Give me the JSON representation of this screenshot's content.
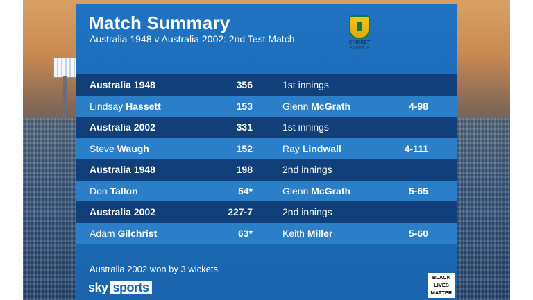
{
  "header": {
    "title": "Match Summary",
    "subtitle": "Australia 1948 v Australia 2002:  2nd Test Match",
    "logo_text": "CRICKET",
    "logo_subtext": "AUSTRALIA"
  },
  "rows": [
    {
      "team": "Australia 1948",
      "score": "356",
      "desc": "1st innings",
      "figures": ""
    },
    {
      "team_first": "Lindsay",
      "team_last": "Hassett",
      "score": "153",
      "desc_first": "Glenn",
      "desc_last": "McGrath",
      "figures": "4-98"
    },
    {
      "team": "Australia 2002",
      "score": "331",
      "desc": "1st innings",
      "figures": ""
    },
    {
      "team_first": "Steve",
      "team_last": "Waugh",
      "score": "152",
      "desc_first": "Ray",
      "desc_last": "Lindwall",
      "figures": "4-111"
    },
    {
      "team": "Australia 1948",
      "score": "198",
      "desc": "2nd innings",
      "figures": ""
    },
    {
      "team_first": "Don",
      "team_last": "Tallon",
      "score": "54*",
      "desc_first": "Glenn",
      "desc_last": "McGrath",
      "figures": "5-65"
    },
    {
      "team": "Australia 2002",
      "score": "227-7",
      "desc": "2nd innings",
      "figures": ""
    },
    {
      "team_first": "Adam",
      "team_last": "Gilchrist",
      "score": "63*",
      "desc_first": "Keith",
      "desc_last": "Miller",
      "figures": "5-60"
    }
  ],
  "footer": {
    "result": "Australia 2002 won by 3 wickets",
    "brand_sky": "sky",
    "brand_sports": "sports",
    "blm_line1": "BLACK",
    "blm_line2": "LIVES",
    "blm_line3": "MATTER"
  },
  "colors": {
    "panel": "#1b6bb7",
    "row_dark": "#103f79",
    "row_light": "#2a7fc8",
    "text": "#ffffff"
  }
}
